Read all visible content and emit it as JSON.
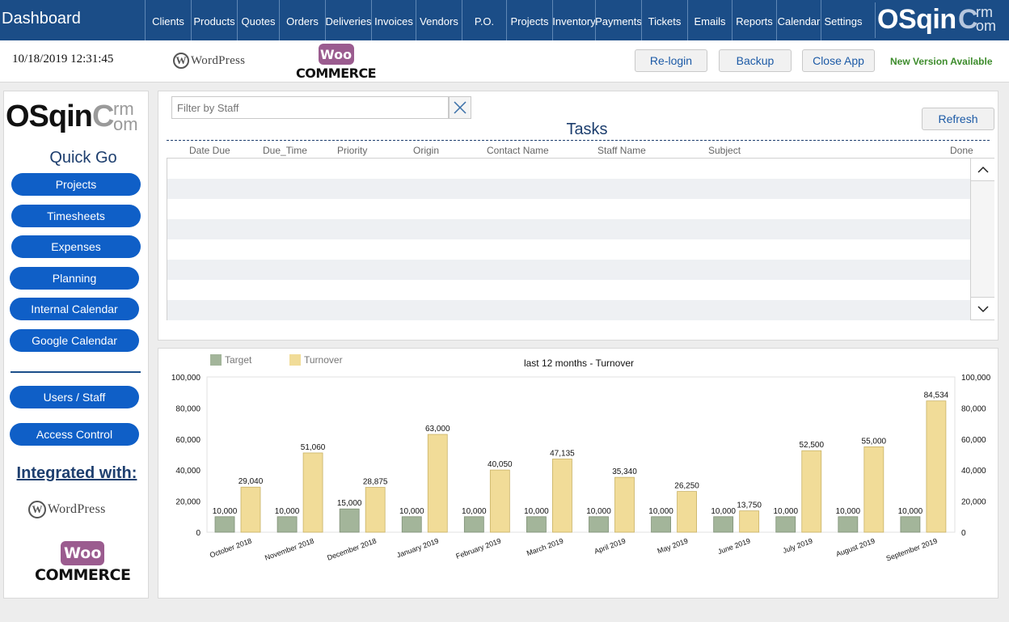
{
  "header": {
    "title": "Dashboard",
    "nav": [
      "Clients",
      "Products",
      "Quotes",
      "Orders",
      "Deliveries",
      "Invoices",
      "Vendors",
      "P.O.",
      "Projects",
      "Inventory",
      "Payments",
      "Tickets",
      "Emails",
      "Reports",
      "Calendar",
      "Settings"
    ],
    "brand": {
      "main": "OSqin",
      "c": "C",
      "rm": "rm",
      "om": "om"
    }
  },
  "subbar": {
    "datetime": "10/18/2019 12:31:45",
    "wordpress": {
      "glyph": "W",
      "text": "WordPress"
    },
    "woo": {
      "bubble": "Woo",
      "text": "COMMERCE"
    },
    "buttons": {
      "relogin": "Re-login",
      "backup": "Backup",
      "close": "Close App"
    },
    "new_version": "New Version Available"
  },
  "sidebar": {
    "brand": {
      "main": "OSqin",
      "c": "C",
      "rm": "rm",
      "om": "om"
    },
    "quick_go": "Quick Go",
    "buttons": [
      "Projects",
      "Timesheets",
      "Expenses",
      "Planning",
      "Internal Calendar",
      "Google Calendar"
    ],
    "admin_buttons": [
      "Users / Staff",
      "Access Control"
    ],
    "integrated_with": "Integrated with:",
    "wordpress": {
      "glyph": "W",
      "text": "WordPress"
    },
    "woo": {
      "bubble": "Woo",
      "text": "COMMERCE"
    }
  },
  "tasks": {
    "filter_placeholder": "Filter by Staff",
    "title": "Tasks",
    "refresh": "Refresh",
    "columns": [
      "Date Due",
      "Due_Time",
      "Priority",
      "Origin",
      "Contact Name",
      "Staff Name",
      "Subject",
      "Done"
    ],
    "rows": []
  },
  "colors": {
    "target": "#a3b59a",
    "turnover": "#f1dc98",
    "nav_bg": "#1b4d87",
    "button_blue": "#0f5fc7"
  },
  "chart_data": {
    "type": "bar",
    "title": "last 12 months - Turnover",
    "categories": [
      "October 2018",
      "November 2018",
      "December 2018",
      "January 2019",
      "February 2019",
      "March 2019",
      "April 2019",
      "May 2019",
      "June 2019",
      "July 2019",
      "August 2019",
      "September 2019"
    ],
    "series": [
      {
        "name": "Target",
        "values": [
          10000,
          10000,
          15000,
          10000,
          10000,
          10000,
          10000,
          10000,
          10000,
          10000,
          10000,
          10000
        ]
      },
      {
        "name": "Turnover",
        "values": [
          29040,
          51060,
          28875,
          63000,
          40050,
          47135,
          35340,
          26250,
          13750,
          52500,
          55000,
          84534
        ]
      }
    ],
    "ylim": [
      0,
      100000
    ],
    "yticks": [
      "0",
      "20,000",
      "40,000",
      "60,000",
      "80,000",
      "100,000"
    ],
    "data_labels": [
      [
        "10,000",
        "10,000",
        "15,000",
        "10,000",
        "10,000",
        "10,000",
        "10,000",
        "10,000",
        "10,000",
        "10,000",
        "10,000",
        "10,000"
      ],
      [
        "29,040",
        "51,060",
        "28,875",
        "63,000",
        "40,050",
        "47,135",
        "35,340",
        "26,250",
        "13,750",
        "52,500",
        "55,000",
        "84,534"
      ]
    ],
    "legend": "top-left",
    "grid": false
  }
}
